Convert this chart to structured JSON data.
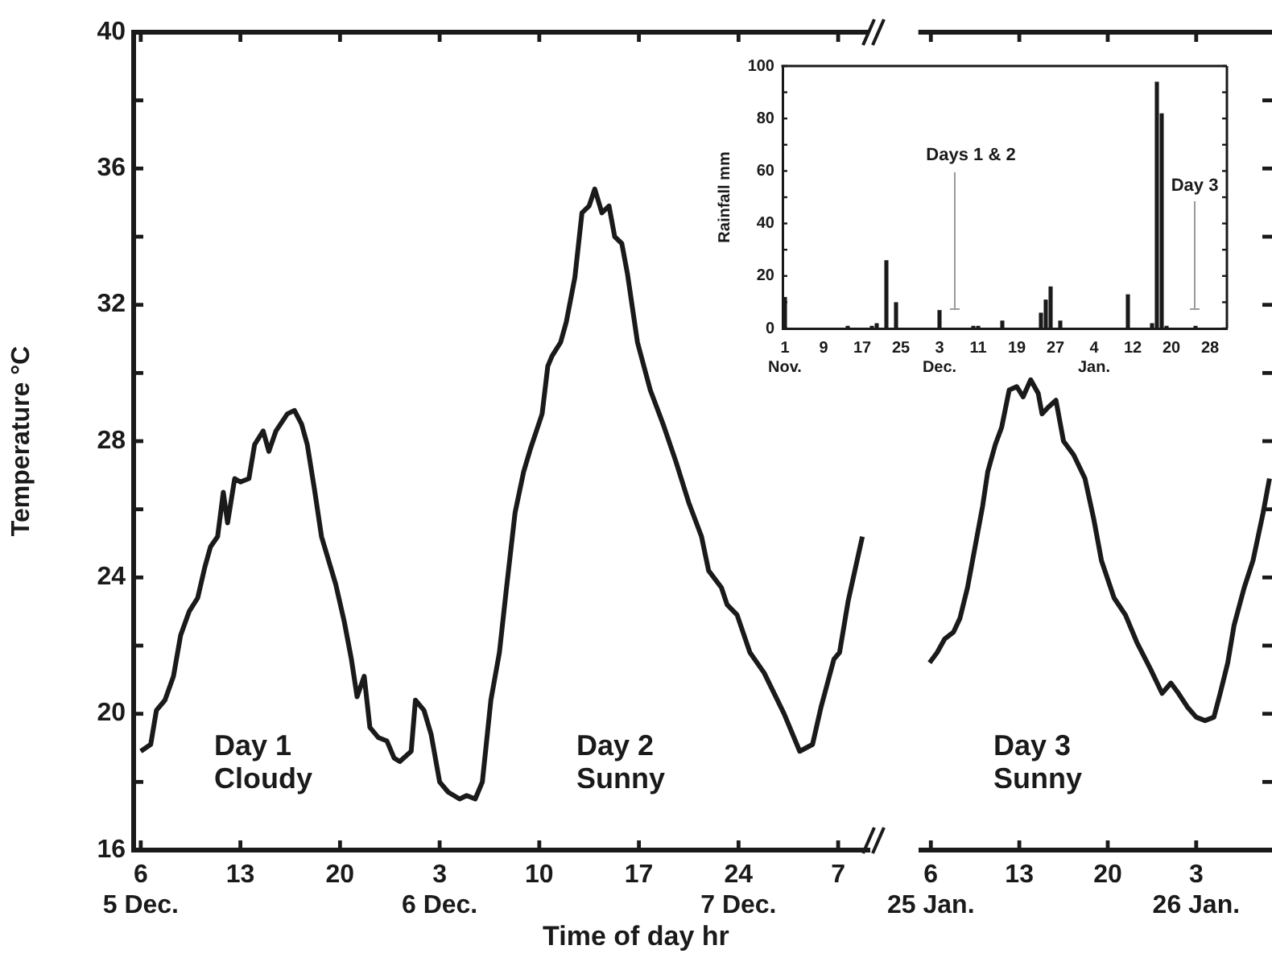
{
  "chart_data": [
    {
      "type": "line",
      "xlabel": "Time of day hr",
      "ylabel": "Temperature °C",
      "xlim": [
        "--12-05T05:30",
        "--12-07T09:12"
      ],
      "xticks": [
        {
          "value": "--12-05T06:00",
          "label": "6\n5 Dec."
        },
        {
          "value": "--12-05T13:00",
          "label": "13"
        },
        {
          "value": "--12-05T20:00",
          "label": "20"
        },
        {
          "value": "--12-06T03:00",
          "label": "3\n6 Dec."
        },
        {
          "value": "--12-06T10:00",
          "label": "10"
        },
        {
          "value": "--12-06T17:00",
          "label": "17"
        },
        {
          "value": "--12-06T24:00",
          "label": "24\n7 Dec."
        },
        {
          "value": "--12-07T07:00",
          "label": "7"
        }
      ],
      "ylim": [
        16,
        40
      ],
      "yticks": [
        16,
        {
          "value": 18,
          "label": null
        },
        20,
        {
          "value": 22,
          "label": null
        },
        24,
        {
          "value": 26,
          "label": null
        },
        28,
        {
          "value": 30,
          "label": null
        },
        32,
        {
          "value": 34,
          "label": null
        },
        36,
        {
          "value": 38,
          "label": null
        },
        40
      ],
      "series": [
        {
          "color": "#1a1a1a",
          "x": [
            "--12-05T06:00",
            "--12-05T06:42",
            "--12-05T07:06",
            "--12-05T07:42",
            "--12-05T08:18",
            "--12-05T08:48",
            "--12-05T09:24",
            "--12-05T10:00",
            "--12-05T10:30",
            "--12-05T10:54",
            "--12-05T11:24",
            "--12-05T11:48",
            "--12-05T12:06",
            "--12-05T12:36",
            "--12-05T13:00",
            "--12-05T13:36",
            "--12-05T14:00",
            "--12-05T14:36",
            "--12-05T15:00",
            "--12-05T15:30",
            "--12-05T16:18",
            "--12-05T16:48",
            "--12-05T17:18",
            "--12-05T17:42",
            "--12-05T18:12",
            "--12-05T18:42",
            "--12-05T19:42",
            "--12-05T20:18",
            "--12-05T20:48",
            "--12-05T21:12",
            "--12-05T21:42",
            "--12-05T22:06",
            "--12-05T22:42",
            "--12-05T23:18",
            "--12-05T23:48",
            "--12-06T00:12",
            "--12-06T01:00",
            "--12-06T01:18",
            "--12-06T01:54",
            "--12-06T02:24",
            "--12-06T03:00",
            "--12-06T03:36",
            "--12-06T04:24",
            "--12-06T04:54",
            "--12-06T05:30",
            "--12-06T06:00",
            "--12-06T06:36",
            "--12-06T07:12",
            "--12-06T07:42",
            "--12-06T08:18",
            "--12-06T08:54",
            "--12-06T09:24",
            "--12-06T10:12",
            "--12-06T10:36",
            "--12-06T10:54",
            "--12-06T11:30",
            "--12-06T11:54",
            "--12-06T12:30",
            "--12-06T13:00",
            "--12-06T13:30",
            "--12-06T13:54",
            "--12-06T14:24",
            "--12-06T14:54",
            "--12-06T15:18",
            "--12-06T15:48",
            "--12-06T16:12",
            "--12-06T16:54",
            "--12-06T17:48",
            "--12-06T18:42",
            "--12-06T19:36",
            "--12-06T20:30",
            "--12-06T21:24",
            "--12-06T21:54",
            "--12-06T22:48",
            "--12-06T23:12",
            "--12-06T23:54",
            "--12-07T00:48",
            "--12-07T01:48",
            "--12-07T03:12",
            "--12-07T04:18",
            "--12-07T05:12",
            "--12-07T05:48",
            "--12-07T06:42",
            "--12-07T07:06",
            "--12-07T07:42",
            "--12-07T08:42"
          ],
          "values": [
            18.9,
            19.1,
            20.1,
            20.4,
            21.1,
            22.3,
            23.0,
            23.4,
            24.3,
            24.9,
            25.2,
            26.5,
            25.6,
            26.9,
            26.8,
            26.9,
            27.9,
            28.3,
            27.7,
            28.3,
            28.8,
            28.9,
            28.5,
            27.9,
            26.6,
            25.2,
            23.8,
            22.7,
            21.6,
            20.5,
            21.1,
            19.6,
            19.3,
            19.2,
            18.7,
            18.6,
            18.9,
            20.4,
            20.1,
            19.4,
            18.0,
            17.7,
            17.5,
            17.6,
            17.5,
            18.0,
            20.4,
            21.8,
            23.7,
            25.9,
            27.1,
            27.8,
            28.8,
            30.2,
            30.5,
            30.9,
            31.5,
            32.8,
            34.7,
            34.9,
            35.4,
            34.7,
            34.9,
            34.0,
            33.8,
            32.9,
            30.9,
            29.5,
            28.5,
            27.4,
            26.2,
            25.2,
            24.2,
            23.7,
            23.2,
            22.9,
            21.8,
            21.2,
            20.0,
            18.9,
            19.1,
            20.2,
            21.6,
            21.8,
            23.3,
            25.2
          ]
        }
      ],
      "annotations": [
        "Day 1\nCloudy",
        "Day 2\nSunny"
      ]
    },
    {
      "type": "line",
      "tick_labels": "x",
      "xlim": [
        "--01-25T05:12",
        "--01-26T09:00"
      ],
      "xticks": [
        {
          "value": "--01-25T06:00",
          "label": "6\n25 Jan."
        },
        {
          "value": "--01-25T13:00",
          "label": "13"
        },
        {
          "value": "--01-25T20:00",
          "label": "20"
        },
        {
          "value": "--01-26T03:00",
          "label": "3\n26 Jan."
        }
      ],
      "ylim": [
        16,
        40
      ],
      "yticks": [
        16,
        {
          "value": 18,
          "label": null
        },
        20,
        {
          "value": 22,
          "label": null
        },
        24,
        {
          "value": 26,
          "label": null
        },
        28,
        {
          "value": 30,
          "label": null
        },
        32,
        {
          "value": 34,
          "label": null
        },
        36,
        {
          "value": 38,
          "label": null
        },
        40
      ],
      "series": [
        {
          "color": "#1a1a1a",
          "x": [
            "--01-25T05:54",
            "--01-25T06:30",
            "--01-25T07:06",
            "--01-25T07:48",
            "--01-25T08:18",
            "--01-25T08:54",
            "--01-25T09:30",
            "--01-25T10:06",
            "--01-25T10:30",
            "--01-25T11:06",
            "--01-25T11:36",
            "--01-25T12:12",
            "--01-25T12:48",
            "--01-25T13:18",
            "--01-25T13:54",
            "--01-25T14:30",
            "--01-25T14:48",
            "--01-25T15:18",
            "--01-25T15:54",
            "--01-25T16:30",
            "--01-25T17:18",
            "--01-25T18:12",
            "--01-25T18:54",
            "--01-25T19:30",
            "--01-25T20:30",
            "--01-25T21:24",
            "--01-25T22:18",
            "--01-25T23:24",
            "--01-26T00:18",
            "--01-26T01:00",
            "--01-26T01:36",
            "--01-26T02:18",
            "--01-26T03:00",
            "--01-26T03:42",
            "--01-26T04:24",
            "--01-26T04:54",
            "--01-26T05:30",
            "--01-26T06:00",
            "--01-26T06:48",
            "--01-26T07:30",
            "--01-26T08:18",
            "--01-26T08:48"
          ],
          "values": [
            21.5,
            21.8,
            22.2,
            22.4,
            22.8,
            23.7,
            24.9,
            26.1,
            27.1,
            27.9,
            28.4,
            29.5,
            29.6,
            29.3,
            29.8,
            29.4,
            28.8,
            29.0,
            29.2,
            28.0,
            27.6,
            26.9,
            25.7,
            24.5,
            23.4,
            22.9,
            22.1,
            21.3,
            20.6,
            20.9,
            20.6,
            20.2,
            19.9,
            19.8,
            19.9,
            20.6,
            21.5,
            22.6,
            23.7,
            24.5,
            25.9,
            26.9
          ]
        }
      ],
      "annotations": [
        "Day 3\nSunny"
      ]
    },
    {
      "type": "bar",
      "ylabel": "Rainfall mm",
      "color": "#1a1a1a",
      "categories": [
        "1\nNov.",
        null,
        null,
        null,
        null,
        null,
        null,
        null,
        "9",
        null,
        null,
        null,
        null,
        null,
        null,
        null,
        "17",
        null,
        null,
        null,
        null,
        null,
        null,
        null,
        "25",
        null,
        null,
        null,
        null,
        null,
        null,
        null,
        "3\nDec.",
        null,
        null,
        null,
        null,
        null,
        null,
        null,
        "11",
        null,
        null,
        null,
        null,
        null,
        null,
        null,
        "19",
        null,
        null,
        null,
        null,
        null,
        null,
        null,
        "27",
        null,
        null,
        null,
        null,
        null,
        null,
        null,
        "4\nJan.",
        null,
        null,
        null,
        null,
        null,
        null,
        null,
        "12",
        null,
        null,
        null,
        null,
        null,
        null,
        null,
        "20",
        null,
        null,
        null,
        null,
        null,
        null,
        null,
        "28",
        null,
        null,
        null
      ],
      "values": [
        12,
        0,
        0,
        0,
        0,
        0,
        0,
        0,
        0,
        0,
        0,
        0,
        0,
        1,
        0,
        0,
        0,
        0,
        1,
        2,
        0,
        26,
        0,
        10,
        0,
        0,
        0,
        0,
        0,
        0,
        0,
        0,
        7,
        0,
        0,
        0,
        0,
        0,
        0,
        1,
        1,
        0,
        0,
        0,
        0,
        3,
        0,
        0,
        0,
        0,
        0,
        0,
        0,
        6,
        11,
        16,
        0,
        3,
        0,
        0,
        0,
        0,
        0,
        0,
        0,
        0,
        0,
        0,
        0,
        0,
        0,
        13,
        0,
        0,
        0,
        0,
        2,
        94,
        82,
        1,
        0,
        0,
        0,
        0,
        0,
        1,
        0,
        0,
        0,
        0,
        0,
        0
      ],
      "ylim": [
        0,
        100
      ],
      "yticks": [
        0,
        {
          "value": 10,
          "label": null
        },
        20,
        {
          "value": 30,
          "label": null
        },
        40,
        {
          "value": 50,
          "label": null
        },
        60,
        {
          "value": 70,
          "label": null
        },
        80,
        {
          "value": 90,
          "label": null
        },
        100
      ],
      "annotations": [
        "Days 1 & 2",
        "Day 3"
      ]
    }
  ]
}
